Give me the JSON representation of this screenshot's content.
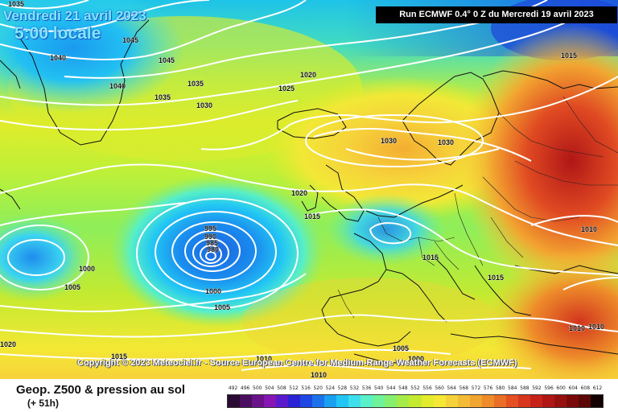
{
  "header": {
    "date": "Vendredi 21 avril 2023",
    "time": "5:00 locale",
    "run": "Run ECMWF 0.4° 0 Z du Mercredi 19 avril 2023"
  },
  "copyright": "Copyright © 2023 Meteociel.fr - Source European Centre for Medium-Range Weather Forecasts (ECMWF)",
  "footer": {
    "title": "Geop. Z500 & pression au sol",
    "range": "(+ 51h)"
  },
  "isobar_labels": [
    {
      "id": "1035-top-left",
      "text": "1035"
    },
    {
      "id": "1045-a",
      "text": "1045"
    },
    {
      "id": "1040-a",
      "text": "1040"
    },
    {
      "id": "1045-b",
      "text": "1045"
    },
    {
      "id": "1040-b",
      "text": "1040"
    },
    {
      "id": "1035-b",
      "text": "1035"
    },
    {
      "id": "1035-c",
      "text": "1035"
    },
    {
      "id": "1030-a",
      "text": "1030"
    },
    {
      "id": "1025",
      "text": "1025"
    },
    {
      "id": "1020-north",
      "text": "1020"
    },
    {
      "id": "1015-top-right",
      "text": "1015"
    },
    {
      "id": "1030-b",
      "text": "1030"
    },
    {
      "id": "1030-c",
      "text": "1030"
    },
    {
      "id": "1020-mid",
      "text": "1020"
    },
    {
      "id": "1015-a",
      "text": "1015"
    },
    {
      "id": "995",
      "text": "995"
    },
    {
      "id": "990",
      "text": "990"
    },
    {
      "id": "985",
      "text": "985"
    },
    {
      "id": "980",
      "text": "980"
    },
    {
      "id": "1000-a",
      "text": "1000"
    },
    {
      "id": "1005-a",
      "text": "1005"
    },
    {
      "id": "1000-b",
      "text": "1000"
    },
    {
      "id": "1005-b",
      "text": "1005"
    },
    {
      "id": "1015-b",
      "text": "1015"
    },
    {
      "id": "1015-c",
      "text": "1015"
    },
    {
      "id": "1010-right",
      "text": "1010"
    },
    {
      "id": "1010-d",
      "text": "1010"
    },
    {
      "id": "1010-e",
      "text": "1010"
    },
    {
      "id": "1020-bottom-left",
      "text": "1020"
    },
    {
      "id": "1015-bottom",
      "text": "1015"
    },
    {
      "id": "1010-bottom-a",
      "text": "1010"
    },
    {
      "id": "1005-bottom",
      "text": "1005"
    },
    {
      "id": "1000-bottom",
      "text": "1000"
    },
    {
      "id": "1010-bottom-b",
      "text": "1010"
    }
  ],
  "scale": {
    "labels": [
      "492",
      "496",
      "500",
      "504",
      "508",
      "512",
      "516",
      "520",
      "524",
      "528",
      "532",
      "536",
      "540",
      "544",
      "548",
      "552",
      "556",
      "560",
      "564",
      "568",
      "572",
      "576",
      "580",
      "584",
      "588",
      "592",
      "596",
      "600",
      "604",
      "608",
      "612"
    ],
    "colors": [
      "#2a0a32",
      "#4a0e5e",
      "#6a128a",
      "#8616b4",
      "#5a1acc",
      "#2b22d6",
      "#1f48e2",
      "#1c72ea",
      "#1aa0f0",
      "#22c6f4",
      "#3ee0ec",
      "#5af0c8",
      "#6ef29a",
      "#86f06e",
      "#a6ec48",
      "#c4ea30",
      "#e2ec2a",
      "#f4e834",
      "#f6d23a",
      "#f4bc36",
      "#f2a430",
      "#ee8c2a",
      "#ea6e26",
      "#e45022",
      "#d8361e",
      "#c6221a",
      "#b01616",
      "#961010",
      "#7a0a0a",
      "#5c0606",
      "#120000"
    ]
  }
}
